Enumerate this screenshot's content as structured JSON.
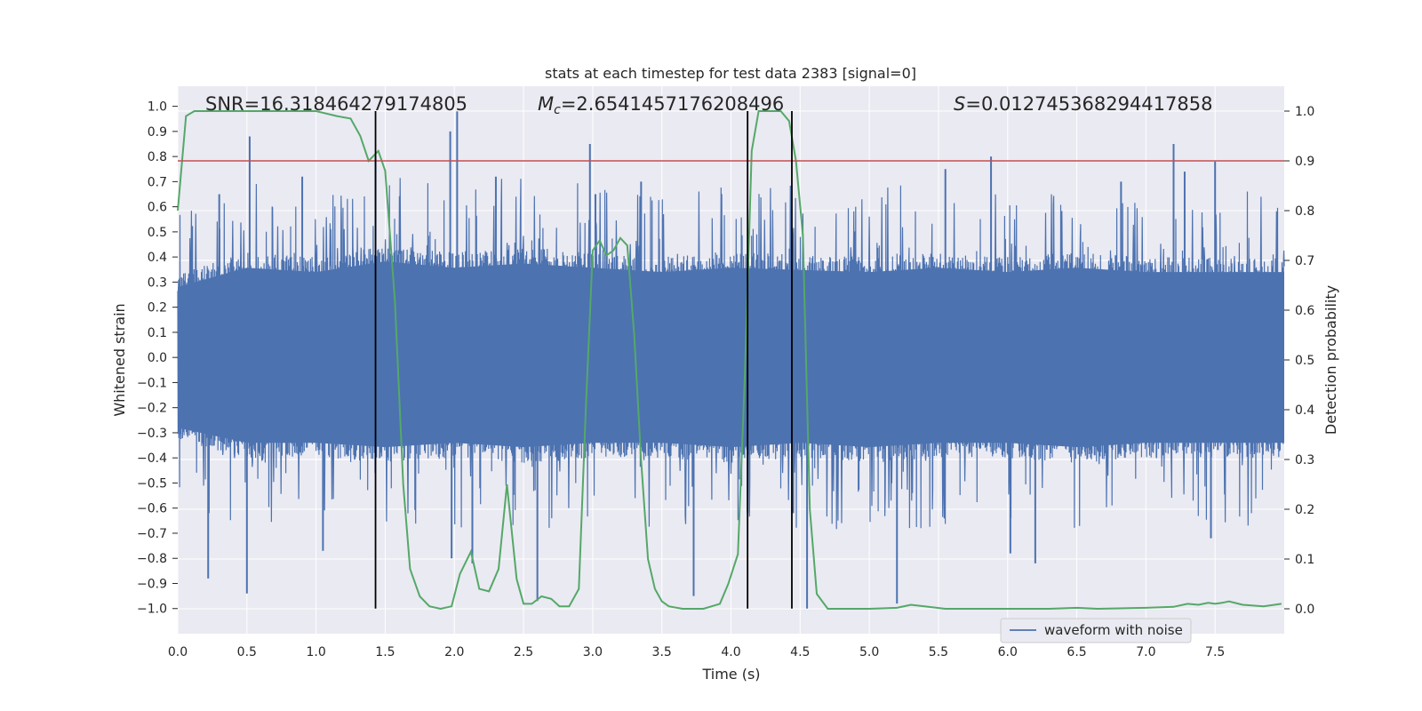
{
  "chart_data": {
    "type": "line",
    "title": "stats at each timestep for test data 2383 [signal=0]",
    "xlabel": "Time (s)",
    "ylabel_left": "Whitened strain",
    "ylabel_right": "Detection probability",
    "xlim": [
      0.0,
      8.0
    ],
    "ylim_left": [
      -1.1,
      1.08
    ],
    "ylim_right": [
      -0.05,
      1.05
    ],
    "x_ticks": [
      "0.0",
      "0.5",
      "1.0",
      "1.5",
      "2.0",
      "2.5",
      "3.0",
      "3.5",
      "4.0",
      "4.5",
      "5.0",
      "5.5",
      "6.0",
      "6.5",
      "7.0",
      "7.5"
    ],
    "x_tick_values": [
      0,
      0.5,
      1,
      1.5,
      2,
      2.5,
      3,
      3.5,
      4,
      4.5,
      5,
      5.5,
      6,
      6.5,
      7,
      7.5
    ],
    "y_left_ticks": [
      "1.0",
      "0.9",
      "0.8",
      "0.7",
      "0.6",
      "0.5",
      "0.4",
      "0.3",
      "0.2",
      "0.1",
      "0.0",
      "−0.1",
      "−0.2",
      "−0.3",
      "−0.4",
      "−0.5",
      "−0.6",
      "−0.7",
      "−0.8",
      "−0.9",
      "−1.0"
    ],
    "y_left_tick_values": [
      1.0,
      0.9,
      0.8,
      0.7,
      0.6,
      0.5,
      0.4,
      0.3,
      0.2,
      0.1,
      0.0,
      -0.1,
      -0.2,
      -0.3,
      -0.4,
      -0.5,
      -0.6,
      -0.7,
      -0.8,
      -0.9,
      -1.0
    ],
    "y_right_ticks": [
      "1.0",
      "0.9",
      "0.8",
      "0.7",
      "0.6",
      "0.5",
      "0.4",
      "0.3",
      "0.2",
      "0.1",
      "0.0"
    ],
    "y_right_tick_values": [
      1.0,
      0.9,
      0.8,
      0.7,
      0.6,
      0.5,
      0.4,
      0.3,
      0.2,
      0.1,
      0.0
    ],
    "annotations": {
      "snr": "SNR=16.318464279174805",
      "mc_prefix": "M",
      "mc_sub": "c",
      "mc_value": "=2.6541457176208496",
      "s_prefix": "S",
      "s_value": "=0.012745368294417858"
    },
    "threshold": {
      "value": 0.9,
      "axis": "right",
      "color": "#c44e52"
    },
    "vertical_lines": [
      1.43,
      4.12,
      4.44
    ],
    "legend": {
      "label": "waveform with noise",
      "placement": "lower-right"
    },
    "series": [
      {
        "name": "waveform with noise",
        "axis": "left",
        "color": "#4c72b0",
        "envelope_top": [
          [
            0,
            0.33
          ],
          [
            0.5,
            0.42
          ],
          [
            1,
            0.4
          ],
          [
            1.5,
            0.45
          ],
          [
            2,
            0.42
          ],
          [
            2.5,
            0.44
          ],
          [
            3,
            0.42
          ],
          [
            3.5,
            0.4
          ],
          [
            4,
            0.42
          ],
          [
            4.5,
            0.41
          ],
          [
            5,
            0.4
          ],
          [
            5.5,
            0.42
          ],
          [
            6,
            0.4
          ],
          [
            6.5,
            0.42
          ],
          [
            7,
            0.4
          ],
          [
            7.5,
            0.4
          ],
          [
            8,
            0.4
          ]
        ],
        "envelope_bottom": [
          [
            0,
            -0.33
          ],
          [
            0.5,
            -0.4
          ],
          [
            1,
            -0.4
          ],
          [
            1.5,
            -0.42
          ],
          [
            2,
            -0.4
          ],
          [
            2.5,
            -0.42
          ],
          [
            3,
            -0.4
          ],
          [
            3.5,
            -0.4
          ],
          [
            4,
            -0.42
          ],
          [
            4.5,
            -0.4
          ],
          [
            5,
            -0.42
          ],
          [
            5.5,
            -0.4
          ],
          [
            6,
            -0.4
          ],
          [
            6.5,
            -0.42
          ],
          [
            7,
            -0.4
          ],
          [
            7.5,
            -0.4
          ],
          [
            8,
            -0.4
          ]
        ],
        "spikes": [
          [
            0.52,
            0.88
          ],
          [
            0.5,
            -0.94
          ],
          [
            0.22,
            -0.88
          ],
          [
            1.05,
            -0.77
          ],
          [
            1.43,
            0.8
          ],
          [
            1.97,
            0.9
          ],
          [
            2.02,
            0.98
          ],
          [
            1.98,
            -0.8
          ],
          [
            2.13,
            -0.82
          ],
          [
            2.6,
            -0.97
          ],
          [
            2.98,
            0.85
          ],
          [
            3.02,
            0.65
          ],
          [
            3.73,
            -0.95
          ],
          [
            4.12,
            -0.62
          ],
          [
            4.45,
            -0.62
          ],
          [
            4.55,
            -1.0
          ],
          [
            5.2,
            -0.98
          ],
          [
            5.88,
            0.8
          ],
          [
            6.2,
            -0.82
          ],
          [
            6.02,
            -0.78
          ],
          [
            7.2,
            0.85
          ],
          [
            7.28,
            0.74
          ],
          [
            7.5,
            0.78
          ],
          [
            7.47,
            -0.72
          ],
          [
            6.82,
            0.7
          ],
          [
            5.55,
            0.75
          ],
          [
            3.35,
            0.7
          ],
          [
            2.3,
            0.72
          ],
          [
            0.3,
            0.65
          ],
          [
            0.9,
            0.72
          ]
        ]
      },
      {
        "name": "detection probability",
        "axis": "right",
        "color": "#55a868",
        "points": [
          [
            0,
            0.8
          ],
          [
            0.06,
            0.99
          ],
          [
            0.12,
            1.0
          ],
          [
            0.5,
            1.0
          ],
          [
            0.8,
            1.0
          ],
          [
            1.0,
            1.0
          ],
          [
            1.15,
            0.99
          ],
          [
            1.25,
            0.985
          ],
          [
            1.32,
            0.95
          ],
          [
            1.38,
            0.9
          ],
          [
            1.45,
            0.92
          ],
          [
            1.5,
            0.88
          ],
          [
            1.57,
            0.62
          ],
          [
            1.63,
            0.25
          ],
          [
            1.68,
            0.08
          ],
          [
            1.75,
            0.025
          ],
          [
            1.82,
            0.005
          ],
          [
            1.9,
            0.0
          ],
          [
            1.98,
            0.005
          ],
          [
            2.04,
            0.07
          ],
          [
            2.12,
            0.115
          ],
          [
            2.18,
            0.04
          ],
          [
            2.25,
            0.035
          ],
          [
            2.32,
            0.08
          ],
          [
            2.38,
            0.25
          ],
          [
            2.45,
            0.06
          ],
          [
            2.5,
            0.01
          ],
          [
            2.56,
            0.01
          ],
          [
            2.63,
            0.025
          ],
          [
            2.7,
            0.02
          ],
          [
            2.76,
            0.005
          ],
          [
            2.83,
            0.005
          ],
          [
            2.9,
            0.04
          ],
          [
            2.95,
            0.4
          ],
          [
            3.0,
            0.72
          ],
          [
            3.05,
            0.74
          ],
          [
            3.1,
            0.71
          ],
          [
            3.15,
            0.72
          ],
          [
            3.2,
            0.745
          ],
          [
            3.25,
            0.73
          ],
          [
            3.3,
            0.55
          ],
          [
            3.35,
            0.3
          ],
          [
            3.4,
            0.1
          ],
          [
            3.45,
            0.04
          ],
          [
            3.5,
            0.015
          ],
          [
            3.55,
            0.005
          ],
          [
            3.65,
            0.0
          ],
          [
            3.8,
            0.0
          ],
          [
            3.92,
            0.01
          ],
          [
            3.98,
            0.05
          ],
          [
            4.05,
            0.11
          ],
          [
            4.1,
            0.47
          ],
          [
            4.15,
            0.92
          ],
          [
            4.2,
            1.0
          ],
          [
            4.28,
            1.0
          ],
          [
            4.36,
            1.0
          ],
          [
            4.42,
            0.98
          ],
          [
            4.47,
            0.9
          ],
          [
            4.52,
            0.75
          ],
          [
            4.57,
            0.2
          ],
          [
            4.62,
            0.03
          ],
          [
            4.7,
            0.0
          ],
          [
            4.8,
            0.0
          ],
          [
            5.0,
            0.0
          ],
          [
            5.2,
            0.002
          ],
          [
            5.3,
            0.008
          ],
          [
            5.4,
            0.005
          ],
          [
            5.55,
            0.0
          ],
          [
            6.0,
            0.0
          ],
          [
            6.3,
            0.0
          ],
          [
            6.5,
            0.002
          ],
          [
            6.65,
            0.0
          ],
          [
            7.0,
            0.002
          ],
          [
            7.2,
            0.004
          ],
          [
            7.3,
            0.01
          ],
          [
            7.38,
            0.008
          ],
          [
            7.45,
            0.012
          ],
          [
            7.5,
            0.01
          ],
          [
            7.55,
            0.012
          ],
          [
            7.6,
            0.015
          ],
          [
            7.7,
            0.008
          ],
          [
            7.85,
            0.005
          ],
          [
            7.98,
            0.01
          ]
        ]
      }
    ]
  }
}
